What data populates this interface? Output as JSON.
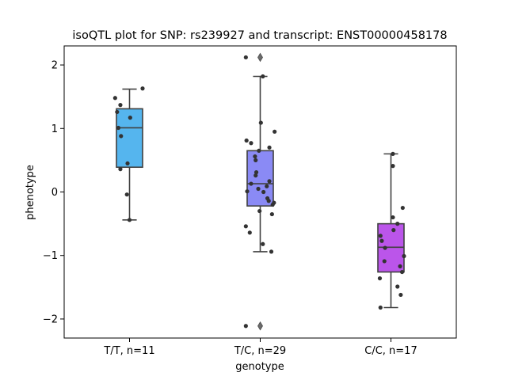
{
  "chart_data": {
    "type": "box",
    "title": "isoQTL plot for SNP: rs239927 and transcript: ENST00000458178",
    "xlabel": "genotype",
    "ylabel": "phenotype",
    "ylim": [
      -2.3,
      2.3
    ],
    "yticks": [
      -2,
      -1,
      0,
      1,
      2
    ],
    "categories": [
      "T/T, n=11",
      "T/C, n=29",
      "C/C, n=17"
    ],
    "colors": [
      "#55b5ee",
      "#8a8af5",
      "#bb55ea"
    ],
    "boxes": [
      {
        "q1": 0.39,
        "median": 1.01,
        "q3": 1.31,
        "whisker_low": -0.44,
        "whisker_high": 1.62,
        "outliers": []
      },
      {
        "q1": -0.22,
        "median": 0.13,
        "q3": 0.65,
        "whisker_low": -0.94,
        "whisker_high": 1.82,
        "outliers": [
          2.12,
          -2.11
        ]
      },
      {
        "q1": -1.26,
        "median": -0.87,
        "q3": -0.5,
        "whisker_low": -1.82,
        "whisker_high": 0.6,
        "outliers": []
      }
    ],
    "points": [
      [
        [
          -0.22,
          1.48
        ],
        [
          -0.19,
          1.26
        ],
        [
          -0.14,
          1.37
        ],
        [
          0.2,
          1.63
        ],
        [
          0.01,
          1.17
        ],
        [
          -0.17,
          1.01
        ],
        [
          -0.13,
          0.88
        ],
        [
          -0.14,
          0.36
        ],
        [
          -0.03,
          0.45
        ],
        [
          -0.04,
          -0.04
        ],
        [
          0.0,
          -0.44
        ]
      ],
      [
        [
          -0.22,
          2.12
        ],
        [
          0.04,
          1.82
        ],
        [
          0.01,
          1.09
        ],
        [
          0.22,
          0.95
        ],
        [
          -0.21,
          0.81
        ],
        [
          -0.14,
          0.77
        ],
        [
          0.14,
          0.7
        ],
        [
          -0.02,
          0.65
        ],
        [
          -0.08,
          0.56
        ],
        [
          -0.07,
          0.5
        ],
        [
          -0.06,
          0.31
        ],
        [
          -0.07,
          0.26
        ],
        [
          0.14,
          0.17
        ],
        [
          -0.14,
          0.13
        ],
        [
          0.1,
          0.09
        ],
        [
          -0.2,
          0.01
        ],
        [
          -0.03,
          0.05
        ],
        [
          0.21,
          -0.17
        ],
        [
          0.19,
          -0.2
        ],
        [
          0.11,
          -0.1
        ],
        [
          0.13,
          -0.14
        ],
        [
          -0.01,
          -0.3
        ],
        [
          0.18,
          -0.35
        ],
        [
          -0.22,
          -0.54
        ],
        [
          -0.16,
          -0.64
        ],
        [
          0.04,
          -0.82
        ],
        [
          0.17,
          -0.94
        ],
        [
          -0.22,
          -2.11
        ],
        [
          0.05,
          0.0
        ]
      ],
      [
        [
          0.03,
          0.6
        ],
        [
          0.03,
          0.41
        ],
        [
          0.18,
          -0.25
        ],
        [
          0.03,
          -0.4
        ],
        [
          0.1,
          -0.5
        ],
        [
          0.04,
          -0.6
        ],
        [
          -0.16,
          -0.69
        ],
        [
          -0.14,
          -0.77
        ],
        [
          -0.09,
          -0.88
        ],
        [
          0.2,
          -1.01
        ],
        [
          -0.1,
          -1.09
        ],
        [
          0.14,
          -1.17
        ],
        [
          0.17,
          -1.26
        ],
        [
          -0.17,
          -1.36
        ],
        [
          0.1,
          -1.49
        ],
        [
          0.15,
          -1.62
        ],
        [
          -0.16,
          -1.82
        ]
      ]
    ]
  }
}
